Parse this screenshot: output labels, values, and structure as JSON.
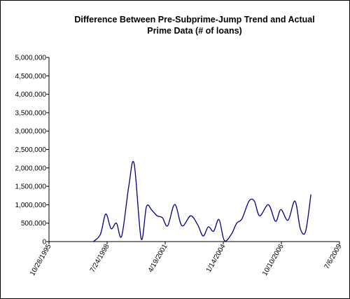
{
  "chart_data": {
    "type": "line",
    "title_line1": "Difference Between Pre-Subprime-Jump Trend and Actual",
    "title_line2": "Prime Data (# of loans)",
    "xlabel": "",
    "ylabel": "",
    "ylim": [
      0,
      5000000
    ],
    "y_ticks": [
      {
        "value": 0,
        "label": "0"
      },
      {
        "value": 500000,
        "label": "500,000"
      },
      {
        "value": 1000000,
        "label": "1,000,000"
      },
      {
        "value": 1500000,
        "label": "1,500,000"
      },
      {
        "value": 2000000,
        "label": "2,000,000"
      },
      {
        "value": 2500000,
        "label": "2,500,000"
      },
      {
        "value": 3000000,
        "label": "3,000,000"
      },
      {
        "value": 3500000,
        "label": "3,500,000"
      },
      {
        "value": 4000000,
        "label": "4,000,000"
      },
      {
        "value": 4500000,
        "label": "4,500,000"
      },
      {
        "value": 5000000,
        "label": "5,000,000"
      }
    ],
    "x_ticks": [
      {
        "value": "1995-10-28",
        "label": "10/28/1995"
      },
      {
        "value": "1998-07-24",
        "label": "7/24/1998"
      },
      {
        "value": "2001-04-19",
        "label": "4/19/2001"
      },
      {
        "value": "2004-01-14",
        "label": "1/14/2004"
      },
      {
        "value": "2006-10-10",
        "label": "10/10/2006"
      },
      {
        "value": "2009-07-06",
        "label": "7/6/2009"
      }
    ],
    "xlim": [
      "1995-10-28",
      "2009-07-06"
    ],
    "grid": false,
    "legend": "none",
    "series": [
      {
        "color": "#000080",
        "points": [
          {
            "x": "1997-12-01",
            "y": 0
          },
          {
            "x": "1998-04-01",
            "y": 200000
          },
          {
            "x": "1998-07-01",
            "y": 750000
          },
          {
            "x": "1998-10-01",
            "y": 350000
          },
          {
            "x": "1999-01-01",
            "y": 500000
          },
          {
            "x": "1999-04-01",
            "y": 150000
          },
          {
            "x": "1999-08-01",
            "y": 1500000
          },
          {
            "x": "1999-11-01",
            "y": 2120000
          },
          {
            "x": "2000-03-01",
            "y": 80000
          },
          {
            "x": "2000-06-01",
            "y": 950000
          },
          {
            "x": "2000-09-01",
            "y": 850000
          },
          {
            "x": "2000-12-01",
            "y": 700000
          },
          {
            "x": "2001-03-01",
            "y": 650000
          },
          {
            "x": "2001-06-01",
            "y": 430000
          },
          {
            "x": "2001-10-01",
            "y": 1010000
          },
          {
            "x": "2002-02-01",
            "y": 430000
          },
          {
            "x": "2002-07-01",
            "y": 700000
          },
          {
            "x": "2002-11-01",
            "y": 450000
          },
          {
            "x": "2003-02-01",
            "y": 150000
          },
          {
            "x": "2003-05-01",
            "y": 400000
          },
          {
            "x": "2003-08-01",
            "y": 280000
          },
          {
            "x": "2003-11-01",
            "y": 600000
          },
          {
            "x": "2004-02-01",
            "y": 30000
          },
          {
            "x": "2004-06-01",
            "y": 200000
          },
          {
            "x": "2004-09-01",
            "y": 500000
          },
          {
            "x": "2004-12-01",
            "y": 620000
          },
          {
            "x": "2005-04-01",
            "y": 1100000
          },
          {
            "x": "2005-07-01",
            "y": 1100000
          },
          {
            "x": "2005-10-01",
            "y": 700000
          },
          {
            "x": "2006-03-01",
            "y": 1000000
          },
          {
            "x": "2006-07-01",
            "y": 550000
          },
          {
            "x": "2006-10-01",
            "y": 870000
          },
          {
            "x": "2007-02-01",
            "y": 580000
          },
          {
            "x": "2007-06-01",
            "y": 1100000
          },
          {
            "x": "2007-09-01",
            "y": 350000
          },
          {
            "x": "2007-12-01",
            "y": 280000
          },
          {
            "x": "2008-03-01",
            "y": 1280000
          }
        ]
      }
    ]
  }
}
